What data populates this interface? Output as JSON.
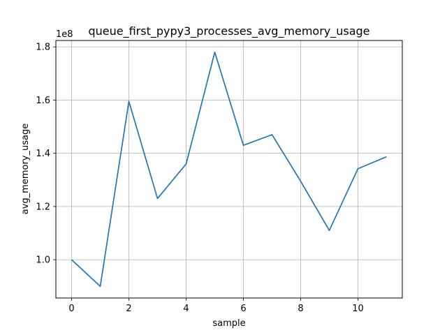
{
  "chart_data": {
    "type": "line",
    "title": "queue_first_pypy3_processes_avg_memory_usage",
    "xlabel": "sample",
    "ylabel": "avg_memory_usage",
    "offset_label": "1e8",
    "x": [
      0,
      1,
      2,
      3,
      4,
      5,
      6,
      7,
      8,
      9,
      10,
      11
    ],
    "series": [
      {
        "values": [
          100000000,
          90000000,
          159500000,
          123000000,
          136000000,
          178000000,
          143000000,
          147000000,
          129500000,
          111000000,
          134200000,
          138700000
        ]
      }
    ],
    "xlim": [
      -0.55,
      11.55
    ],
    "ylim": [
      85600000,
      182400000
    ],
    "xticks": [
      0,
      2,
      4,
      6,
      8,
      10
    ],
    "yticks": [
      100000000,
      120000000,
      140000000,
      160000000,
      180000000
    ],
    "ytick_labels": [
      "1.0",
      "1.2",
      "1.4",
      "1.6",
      "1.8"
    ],
    "grid": true,
    "line_color": "#1f77b4"
  }
}
